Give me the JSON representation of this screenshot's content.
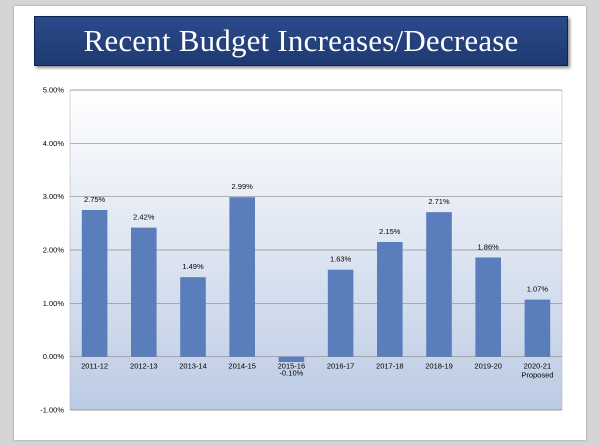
{
  "slide": {
    "title": "Recent Budget Increases/Decrease"
  },
  "colors": {
    "banner": "#233f7c",
    "bar": "#5a7dbb",
    "grid": "#8c8c8c"
  },
  "chart_data": {
    "type": "bar",
    "title": "",
    "xlabel": "",
    "ylabel": "",
    "categories": [
      "2011-12",
      "2012-13",
      "2013-14",
      "2014-15",
      "2015-16",
      "2016-17",
      "2017-18",
      "2018-19",
      "2019-20",
      "2020-21 Proposed"
    ],
    "values": [
      2.75,
      2.42,
      1.49,
      2.99,
      -0.1,
      1.63,
      2.15,
      2.71,
      1.86,
      1.07
    ],
    "data_labels": [
      "2.75%",
      "2.42%",
      "1.49%",
      "2.99%",
      "-0.10%",
      "1.63%",
      "2.15%",
      "2.71%",
      "1.86%",
      "1.07%"
    ],
    "y_ticks": [
      5,
      4,
      3,
      2,
      1,
      0,
      -1
    ],
    "y_tick_labels": [
      "5.00%",
      "4.00%",
      "3.00%",
      "2.00%",
      "1.00%",
      "0.00%",
      "-1.00%"
    ],
    "ylim": [
      -1,
      5
    ],
    "grid": true,
    "legend": "none"
  }
}
